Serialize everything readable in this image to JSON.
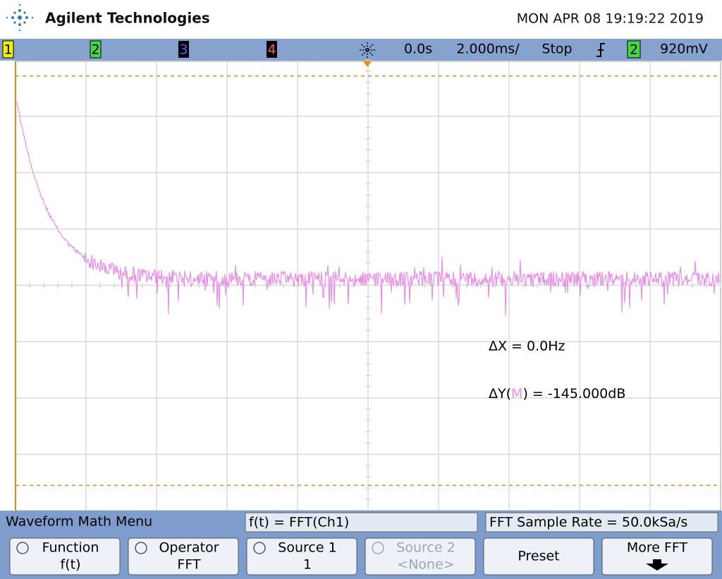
{
  "header": {
    "brand": "Agilent Technologies",
    "datetime": "MON APR 08 19:19:22 2019"
  },
  "status": {
    "channels": [
      "1",
      "2",
      "3",
      "4"
    ],
    "time_offset": "0.0s",
    "time_scale": "2.000ms/",
    "run_state": "Stop",
    "trigger_source": "2",
    "trigger_level": "920mV"
  },
  "measurements": {
    "dx": "ΔX = 0.0Hz",
    "dy_prefix": "ΔY(",
    "dy_marker": "M",
    "dy_suffix": ") = -145.000dB"
  },
  "menu": {
    "title": "Waveform Math Menu",
    "formula": "f(t) = FFT(Ch1)",
    "sample_rate": "FFT Sample Rate = 50.0kSa/s",
    "softkeys": [
      {
        "label": "Function",
        "value": "f(t)"
      },
      {
        "label": "Operator",
        "value": "FFT"
      },
      {
        "label": "Source 1",
        "value": "1"
      },
      {
        "label": "Source 2",
        "value": "<None>"
      },
      {
        "label": "Preset"
      },
      {
        "label": "More FFT"
      }
    ]
  }
}
